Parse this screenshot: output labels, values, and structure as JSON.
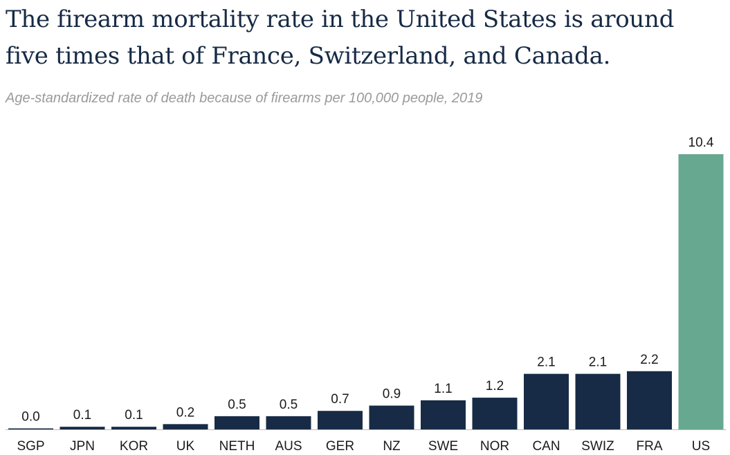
{
  "chart_data": {
    "type": "bar",
    "title_lines": [
      "The firearm mortality rate in the United States is around",
      "five times that of France, Switzerland, and Canada."
    ],
    "subtitle": "Age-standardized rate of death because of firearms per 100,000 people, 2019",
    "categories": [
      "SGP",
      "JPN",
      "KOR",
      "UK",
      "NETH",
      "AUS",
      "GER",
      "NZ",
      "SWE",
      "NOR",
      "CAN",
      "SWIZ",
      "FRA",
      "US"
    ],
    "values": [
      0.0,
      0.1,
      0.1,
      0.2,
      0.5,
      0.5,
      0.7,
      0.9,
      1.1,
      1.2,
      2.1,
      2.1,
      2.2,
      10.4
    ],
    "value_labels": [
      "0.0",
      "0.1",
      "0.1",
      "0.2",
      "0.5",
      "0.5",
      "0.7",
      "0.9",
      "1.1",
      "1.2",
      "2.1",
      "2.1",
      "2.2",
      "10.4"
    ],
    "highlight_category": "US",
    "xlabel": "",
    "ylabel": "",
    "ylim": [
      0,
      10.4
    ],
    "grid": false,
    "colors": {
      "default": "#172b46",
      "highlight": "#66a890",
      "axis": "#bbbbbb"
    }
  }
}
